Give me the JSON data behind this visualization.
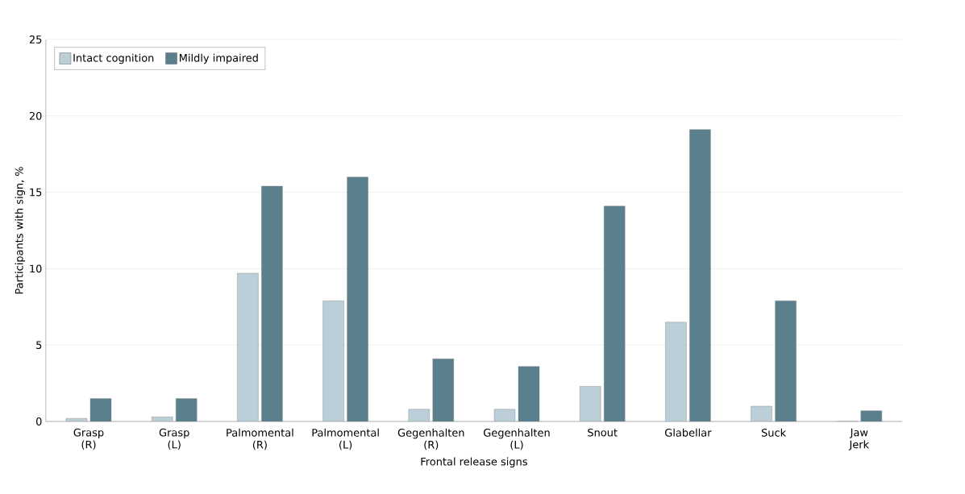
{
  "chart_data": {
    "type": "bar",
    "xlabel": "Frontal release signs",
    "ylabel": "Participants with sign, %",
    "categories": [
      "Grasp (R)",
      "Grasp (L)",
      "Palmomental (R)",
      "Palmomental (L)",
      "Gegenhalten (R)",
      "Gegenhalten (L)",
      "Snout",
      "Glabellar",
      "Suck",
      "Jaw Jerk"
    ],
    "series": [
      {
        "name": "Intact cognition",
        "color": "#bccfd9",
        "values": [
          0.2,
          0.3,
          9.7,
          7.9,
          0.8,
          0.8,
          2.3,
          6.5,
          1.0,
          0
        ]
      },
      {
        "name": "Mildly impaired",
        "color": "#5a7f8d",
        "values": [
          1.5,
          1.5,
          15.4,
          16.0,
          4.1,
          3.6,
          14.1,
          19.1,
          7.9,
          0.7
        ]
      }
    ],
    "ylim": [
      0,
      25
    ],
    "yticks": [
      0,
      5,
      10,
      15,
      20,
      25
    ],
    "grid": "y",
    "legend": "top left"
  }
}
